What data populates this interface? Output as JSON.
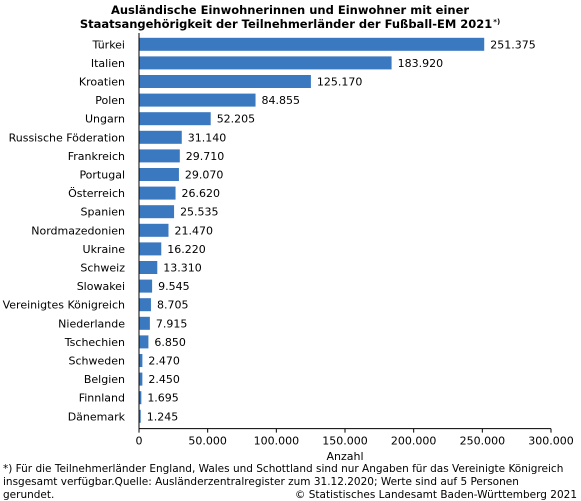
{
  "chart_data": {
    "type": "bar",
    "orientation": "horizontal",
    "title_line1": "Ausländische Einwohnerinnen und Einwohner mit einer",
    "title_line2": "Staatsangehörigkeit der Teilnehmerländer der Fußball-EM 2021",
    "title_marker": "*)",
    "categories": [
      "Türkei",
      "Italien",
      "Kroatien",
      "Polen",
      "Ungarn",
      "Russische Föderation",
      "Frankreich",
      "Portugal",
      "Österreich",
      "Spanien",
      "Nordmazedonien",
      "Ukraine",
      "Schweiz",
      "Slowakei",
      "Vereinigtes Königreich",
      "Niederlande",
      "Tschechien",
      "Schweden",
      "Belgien",
      "Finnland",
      "Dänemark"
    ],
    "values": [
      251375,
      183920,
      125170,
      84855,
      52205,
      31140,
      29710,
      29070,
      26620,
      25535,
      21470,
      16220,
      13310,
      9545,
      8705,
      7915,
      6850,
      2470,
      2450,
      1695,
      1245
    ],
    "value_labels": [
      "251.375",
      "183.920",
      "125.170",
      "84.855",
      "52.205",
      "31.140",
      "29.710",
      "29.070",
      "26.620",
      "25.535",
      "21.470",
      "16.220",
      "13.310",
      "9.545",
      "8.705",
      "7.915",
      "6.850",
      "2.470",
      "2.450",
      "1.695",
      "1.245"
    ],
    "xlabel": "Anzahl",
    "xlim": [
      0,
      300000
    ],
    "xticks": [
      0,
      50000,
      100000,
      150000,
      200000,
      250000,
      300000
    ],
    "xtick_labels": [
      "0",
      "50.000",
      "100.000",
      "150.000",
      "200.000",
      "250.000",
      "300.000"
    ],
    "bar_color": "#3a78bf",
    "grid": false,
    "legend": "none"
  },
  "footnote_line1": "*) Für die Teilnehmerländer England, Wales und Schottland sind nur Angaben für das Vereinigte Königreich",
  "footnote_line2": "insgesamt verfügbar.Quelle: Ausländerzentralregister zum 31.12.2020; Werte sind auf 5 Personen",
  "footnote_line3": "gerundet.",
  "copyright": "© Statistisches Landesamt Baden-Württemberg 2021"
}
